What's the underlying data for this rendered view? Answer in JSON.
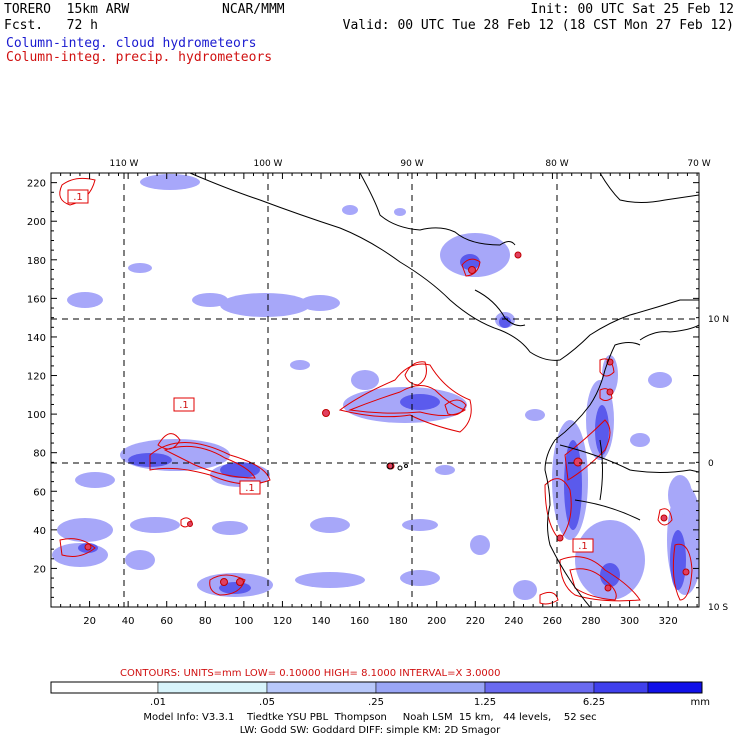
{
  "header": {
    "model": "TORERO  15km ARW",
    "fcst": "Fcst.   72 h",
    "center": "NCAR/MMM",
    "init": "Init: 00 UTC Sat 25 Feb 12",
    "valid": "Valid: 00 UTC Tue 28 Feb 12 (18 CST Mon 27 Feb 12)",
    "field_cloud": "Column-integ. cloud hydrometeors",
    "field_precip": "Column-integ. precip. hydrometeors"
  },
  "map": {
    "x_ticks": [
      "20",
      "40",
      "60",
      "80",
      "100",
      "120",
      "140",
      "160",
      "180",
      "200",
      "220",
      "240",
      "260",
      "280",
      "300",
      "320"
    ],
    "y_ticks": [
      "20",
      "40",
      "60",
      "80",
      "100",
      "120",
      "140",
      "160",
      "180",
      "200",
      "220"
    ],
    "lon_labels": [
      "110 W",
      "100 W",
      "90 W",
      "80 W",
      "70 W"
    ],
    "lat_labels": [
      "10 N",
      "0",
      "10 S"
    ],
    "contour_box_label": ".1",
    "colors": {
      "cloud_fill": "#8080ff",
      "cloud_dark": "#4040ee",
      "precip_contour": "#e00000",
      "coast": "#000000"
    }
  },
  "contour_info": "CONTOURS:  UNITS=mm  LOW= 0.10000     HIGH=  8.1000     INTERVAL=X  3.0000",
  "colorbar": {
    "labels": [
      ".01",
      ".05",
      ".25",
      "1.25",
      "6.25"
    ],
    "unit": "mm",
    "colors": [
      "#ffffff",
      "#d8f4fb",
      "#b8c8fa",
      "#9aa6f6",
      "#6a6af0",
      "#4040ec",
      "#1010e8"
    ]
  },
  "footer": {
    "line1": "Model Info: V3.3.1    Tiedtke YSU PBL  Thompson     Noah LSM  15 km,   44 levels,    52 sec",
    "line2": "LW: Godd SW: Goddard DIFF: simple KM: 2D Smagor"
  }
}
